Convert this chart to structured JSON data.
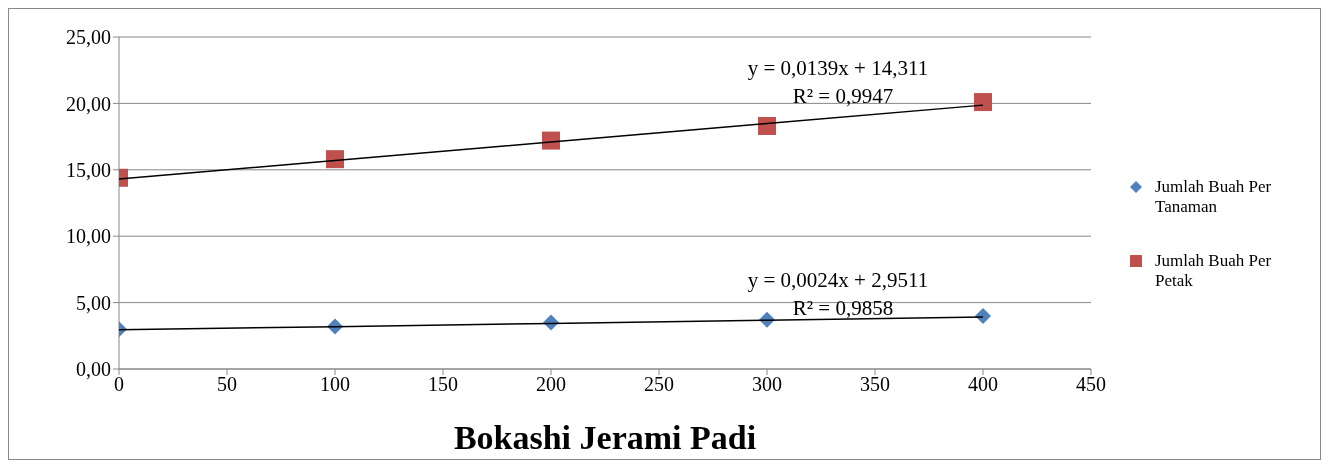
{
  "chart_data": {
    "type": "scatter",
    "xlabel": "Bokashi Jerami Padi",
    "x": [
      0,
      100,
      200,
      300,
      400
    ],
    "series": [
      {
        "name": "Jumlah Buah Per Tanaman",
        "color": "#4f81bd",
        "marker": "diamond",
        "values": [
          3.0,
          3.2,
          3.5,
          3.7,
          4.0
        ]
      },
      {
        "name": "Jumlah Buah Per Petak",
        "color": "#c0504d",
        "marker": "square",
        "values": [
          14.4,
          15.8,
          17.2,
          18.3,
          20.1
        ]
      },
      {
        "type": "line",
        "color": "#000000",
        "values": [
          2.95,
          3.19,
          3.43,
          3.67,
          3.91
        ]
      },
      {
        "type": "line",
        "color": "#000000",
        "values": [
          14.31,
          15.7,
          17.09,
          18.48,
          19.87
        ]
      }
    ],
    "xlim": [
      0,
      450
    ],
    "xticks": [
      0,
      50,
      100,
      150,
      200,
      250,
      300,
      350,
      400,
      450
    ],
    "ylim": [
      0,
      25
    ],
    "yticks": [
      {
        "value": 0,
        "label": "0,00"
      },
      {
        "value": 5,
        "label": "5,00"
      },
      {
        "value": 10,
        "label": "10,00"
      },
      {
        "value": 15,
        "label": "15,00"
      },
      {
        "value": 20,
        "label": "20,00"
      },
      {
        "value": 25,
        "label": "25,00"
      }
    ],
    "grid": "y",
    "legend": "right",
    "annotations": [
      "y = 0,0024x + 2,9511",
      "R² = 0,9858",
      "y = 0,0139x + 14,311",
      "R² = 0,9947"
    ]
  }
}
